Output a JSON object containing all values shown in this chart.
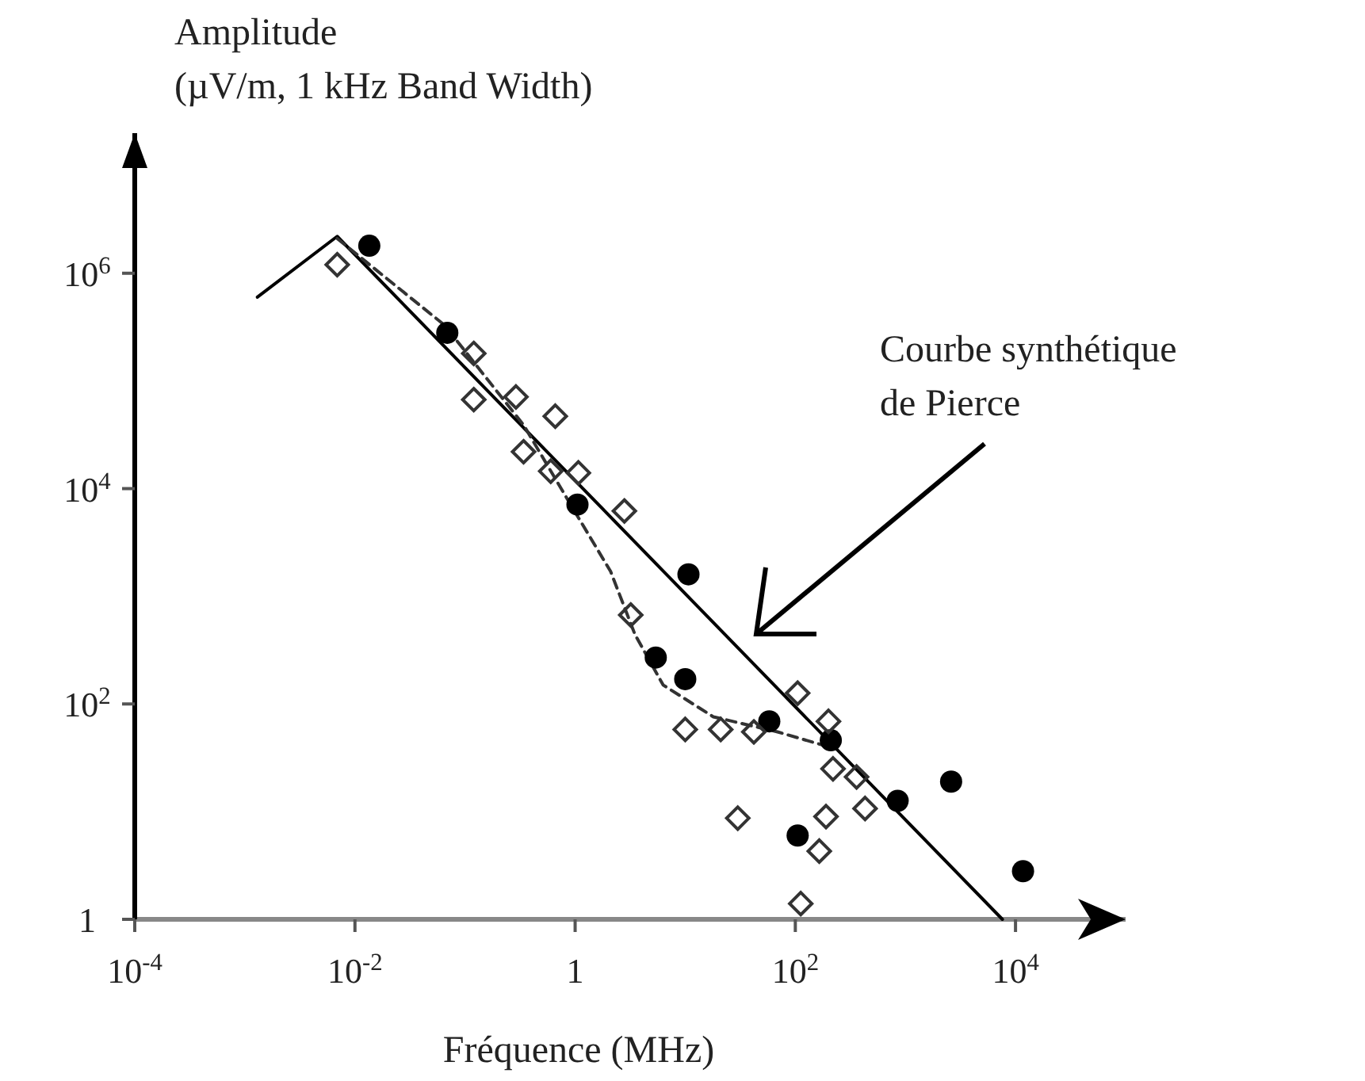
{
  "chart_data": {
    "type": "scatter",
    "ylabel": "Amplitude\n(µV/m, 1 kHz  Band Width)",
    "xlabel": "Fréquence (MHz)",
    "log": "xy",
    "grid": false,
    "xlim": [
      0.0001,
      100000
    ],
    "ylim": [
      1,
      20000000
    ],
    "xticks": [
      {
        "value": 0.0001,
        "label": "10$^{-4}$"
      },
      {
        "value": 0.01,
        "label": "10$^{-2}$"
      },
      1,
      {
        "value": 100,
        "label": "10$^{2}$"
      },
      {
        "value": 10000,
        "label": "10$^{4}$"
      }
    ],
    "yticks": [
      1,
      {
        "value": 100,
        "label": "10$^{2}$"
      },
      {
        "value": 10000,
        "label": "10$^{4}$"
      },
      {
        "value": 1000000,
        "label": "10$^{6}$"
      }
    ],
    "annotations": [
      "Courbe synthétique\nde Pierce"
    ],
    "series": [
      {
        "type": "line",
        "color": "#000000",
        "line_style": "solid",
        "x": [
          0.0013,
          0.0069,
          7600
        ],
        "values": [
          600000,
          2200000,
          1
        ]
      },
      {
        "type": "line",
        "color": "#333333",
        "line_style": "dashed",
        "x": [
          0.0069,
          0.065,
          0.34,
          0.91,
          2.1,
          3.5,
          6.3,
          18,
          69,
          185
        ],
        "values": [
          2100000,
          330000,
          39000,
          7100,
          1700,
          440,
          150,
          76,
          55,
          41
        ]
      },
      {
        "color": "#000000",
        "marker": "circle",
        "x": [
          0.0135,
          0.069,
          1.05,
          10.7,
          5.4,
          10,
          58,
          210,
          850,
          2600,
          105,
          11700
        ],
        "values": [
          1800000,
          280000,
          7100,
          1600,
          270,
          170,
          69,
          46,
          12.6,
          19,
          6,
          2.8
        ]
      },
      {
        "color": "#333333",
        "marker": "diamond",
        "x": [
          0.0069,
          0.12,
          0.12,
          0.29,
          0.66,
          0.34,
          0.6,
          1.07,
          2.8,
          3.2,
          10,
          21,
          42,
          105,
          200,
          220,
          360,
          430,
          190,
          30,
          165,
          112
        ],
        "values": [
          1200000,
          180000,
          67000,
          71000,
          47000,
          22000,
          14500,
          14000,
          6200,
          670,
          58,
          58,
          55,
          126,
          69,
          25,
          21,
          10.7,
          9,
          8.7,
          4.3,
          1.4
        ]
      }
    ]
  }
}
